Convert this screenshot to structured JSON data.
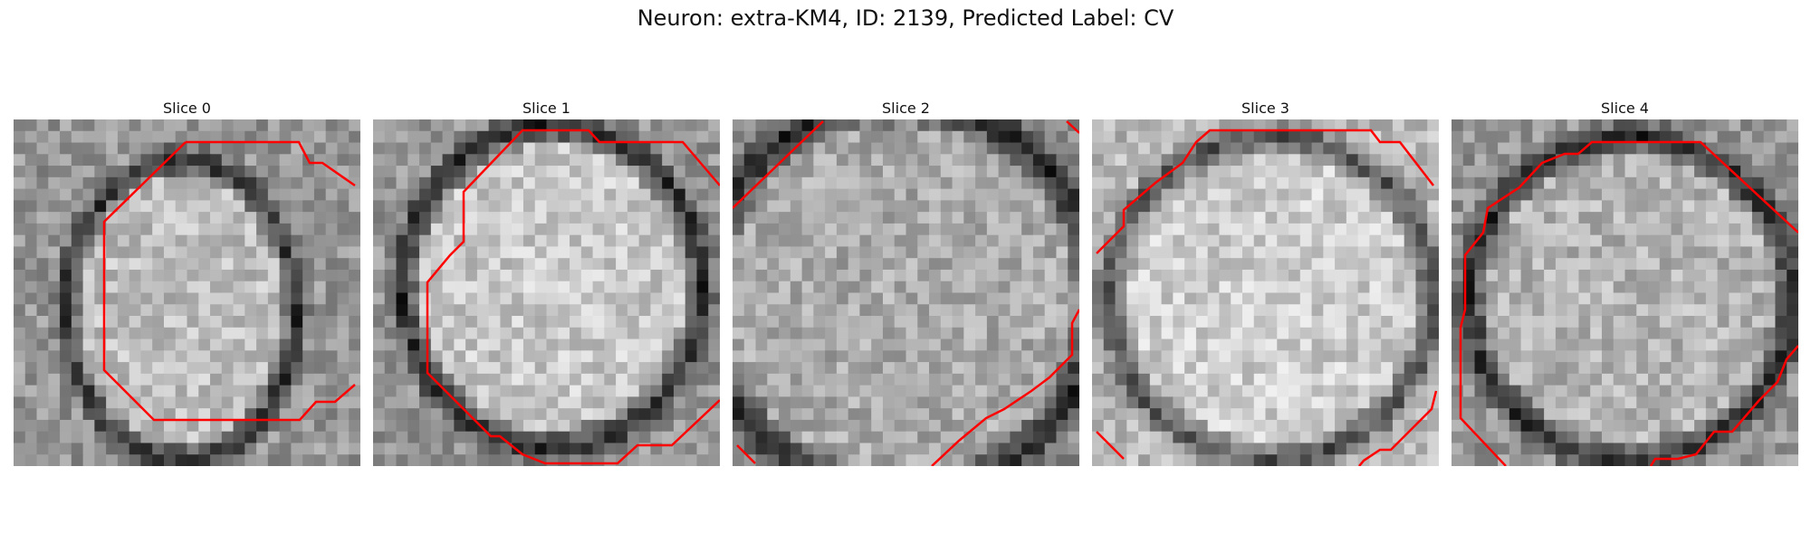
{
  "figure": {
    "title": "Neuron: extra-KM4, ID: 2139, Predicted Label: CV",
    "contour_color": "#ff0000",
    "colormap": "gray"
  },
  "panels": [
    {
      "title": "Slice 0"
    },
    {
      "title": "Slice 1"
    },
    {
      "title": "Slice 2"
    },
    {
      "title": "Slice 3"
    },
    {
      "title": "Slice 4"
    }
  ]
}
